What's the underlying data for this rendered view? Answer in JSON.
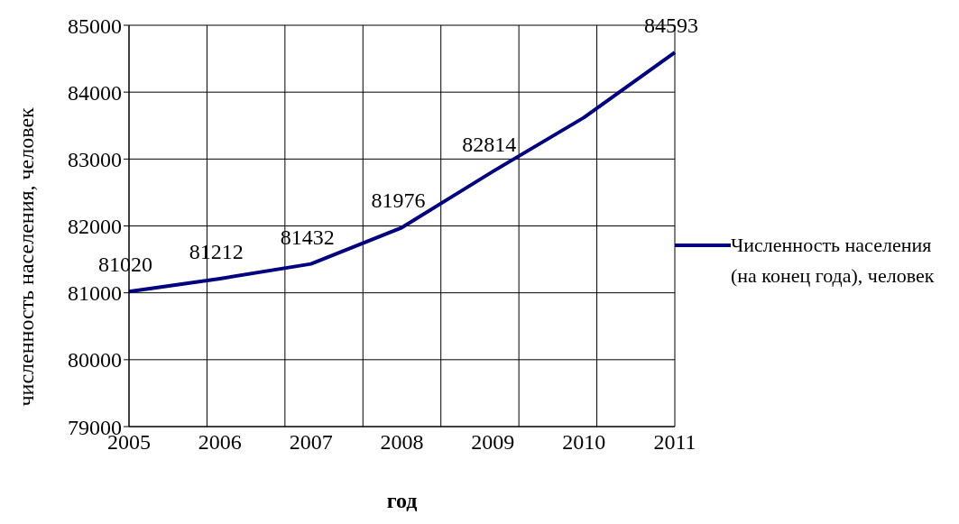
{
  "chart_data": {
    "type": "line",
    "xlabel": "год",
    "ylabel": "численность населения,  человек",
    "categories": [
      "2005",
      "2006",
      "2007",
      "2008",
      "2009",
      "2010",
      "2011"
    ],
    "series": [
      {
        "name": "Численность населения (на конец года), человек",
        "color": "#000080",
        "values": [
          81020,
          81212,
          81432,
          81976,
          82814,
          83620,
          84593
        ],
        "value_labels": [
          "81020",
          "81212",
          "81432",
          "81976",
          "82814",
          null,
          "84593"
        ]
      }
    ],
    "ylim": [
      79000,
      85000
    ],
    "yticks": [
      79000,
      80000,
      81000,
      82000,
      83000,
      84000,
      85000
    ],
    "grid": true,
    "legend": "right",
    "marker": "none",
    "line_style": "solid"
  }
}
